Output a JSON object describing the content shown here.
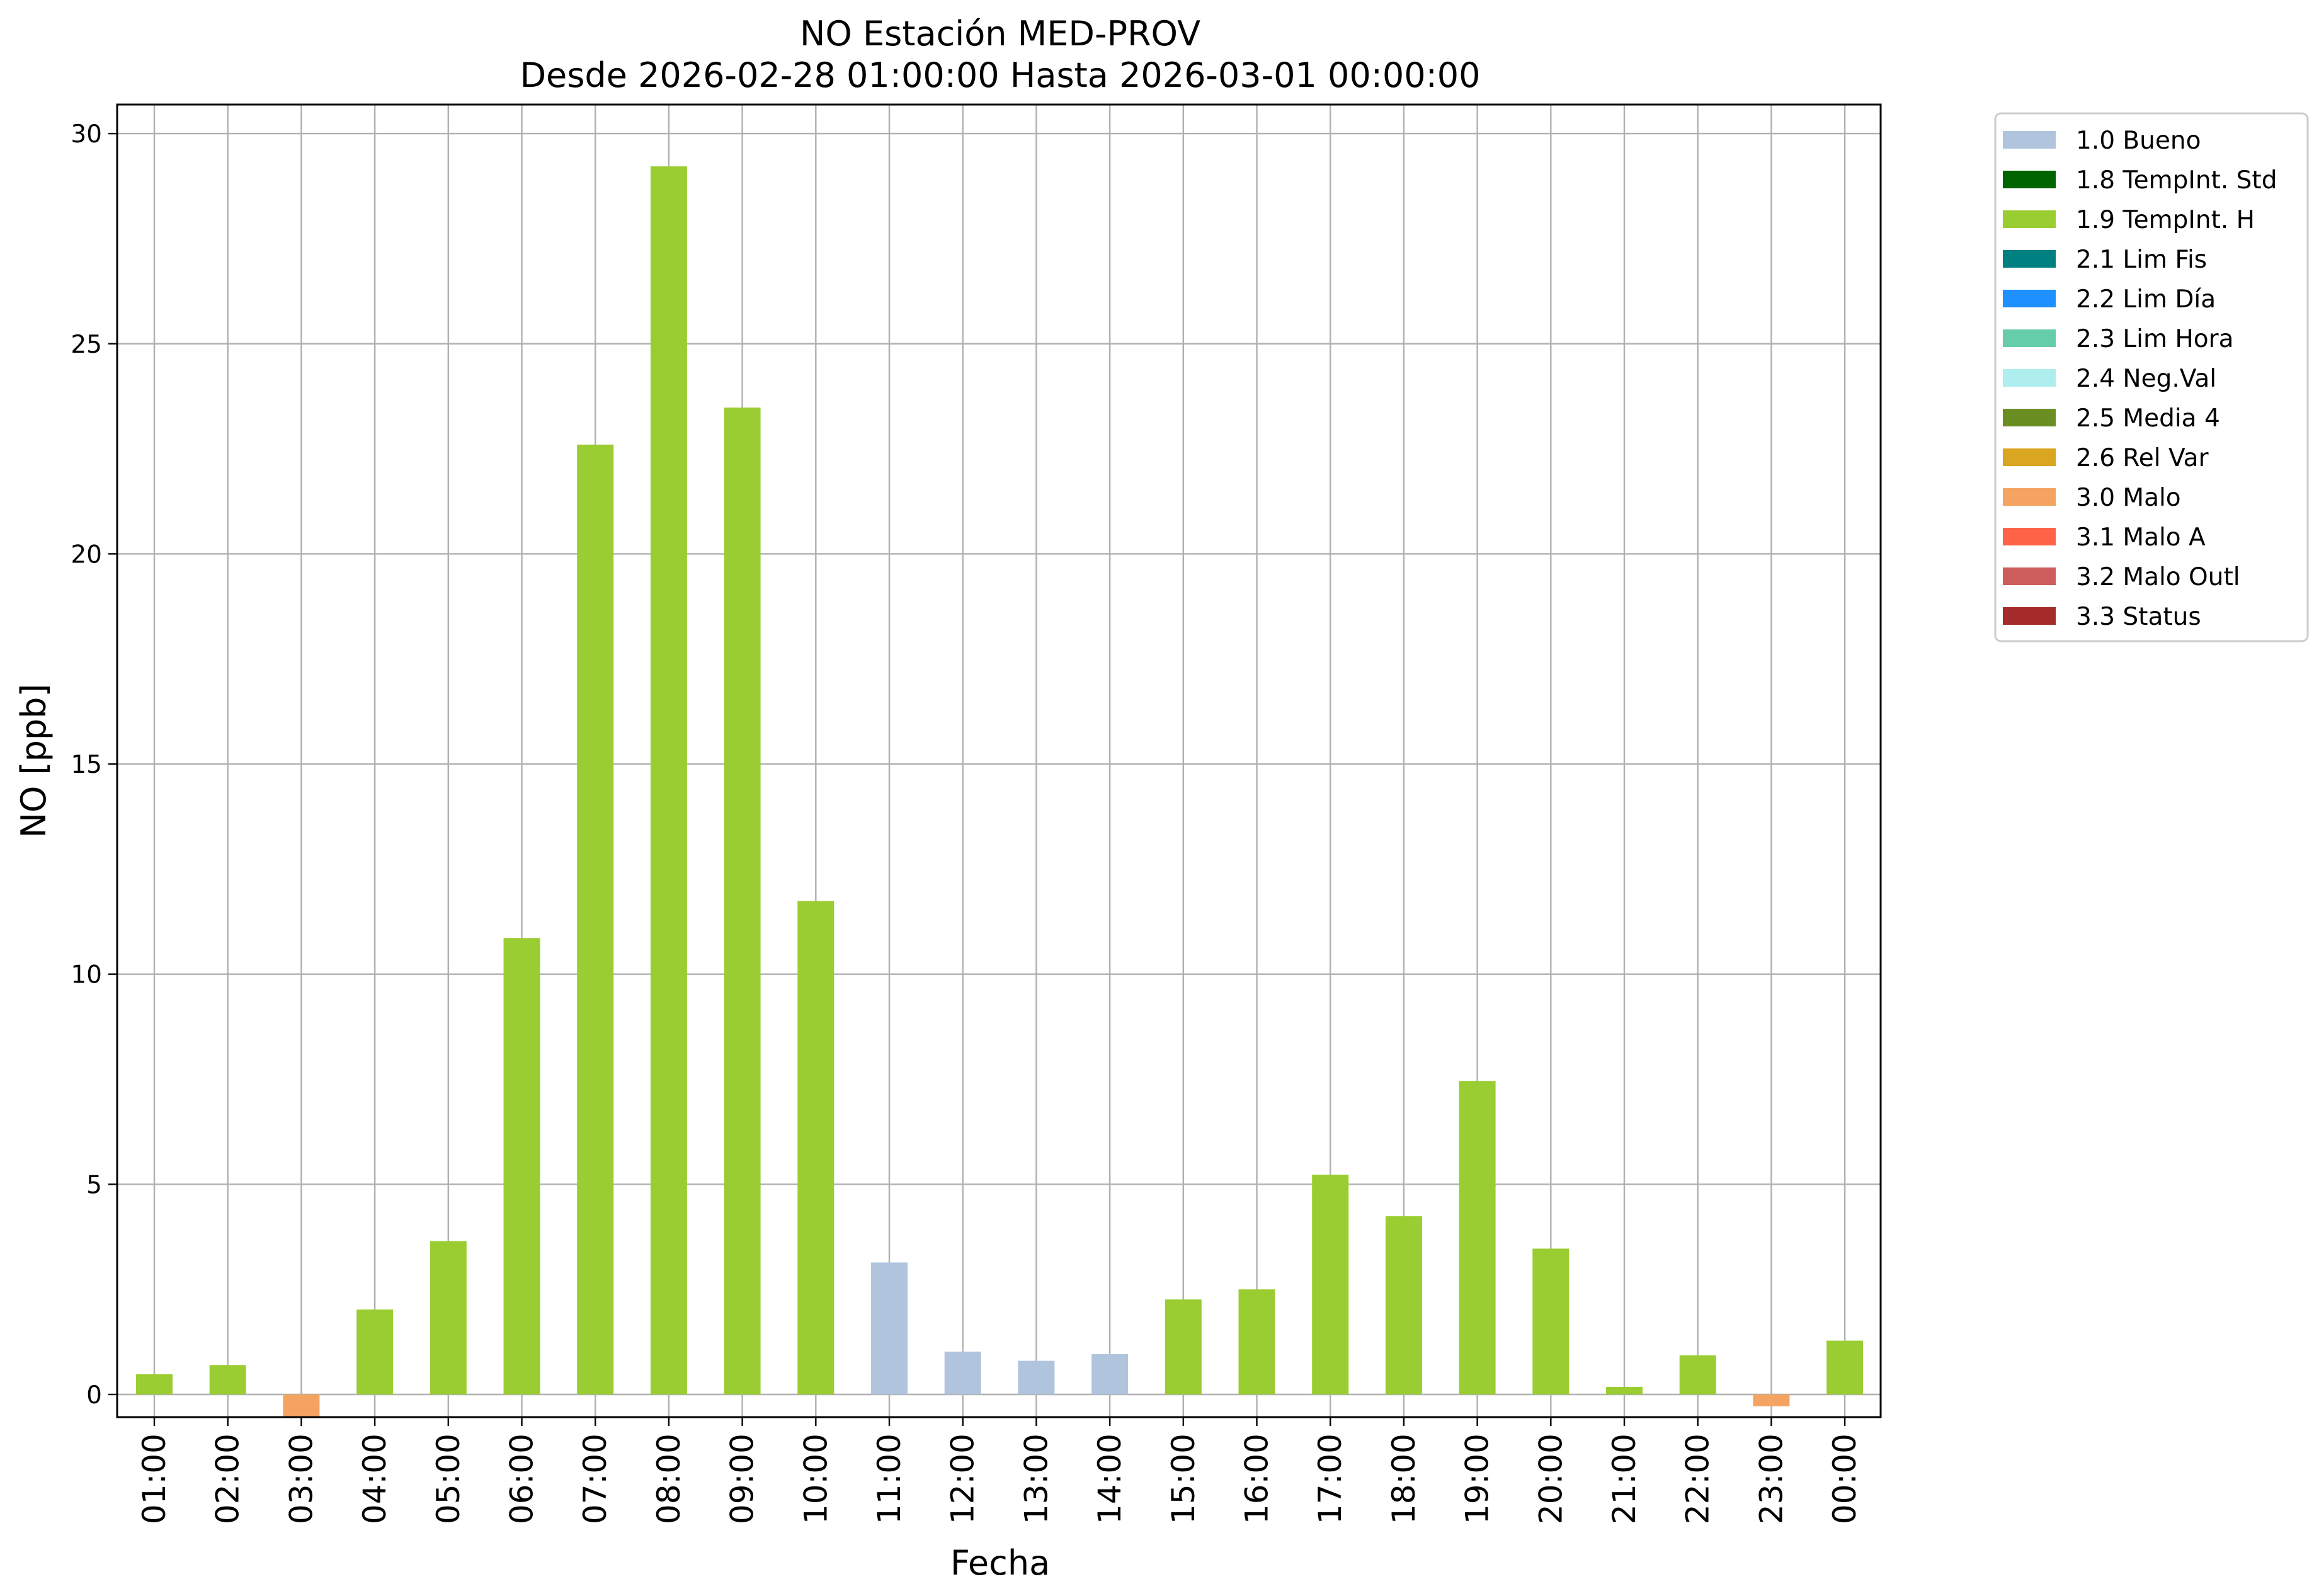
{
  "chart_data": {
    "type": "bar",
    "title": "NO Estación MED-PROV",
    "subtitle": "Desde 2026-02-28 01:00:00 Hasta 2026-03-01 00:00:00",
    "xlabel": "Fecha",
    "ylabel": "NO [ppb]",
    "ylim": [
      -0.55,
      30.6
    ],
    "yticks": [
      0,
      5,
      10,
      15,
      20,
      25,
      30
    ],
    "grid": true,
    "legend_position": "outside-right-top",
    "categories": [
      "01:00",
      "02:00",
      "03:00",
      "04:00",
      "05:00",
      "06:00",
      "07:00",
      "08:00",
      "09:00",
      "10:00",
      "11:00",
      "12:00",
      "13:00",
      "14:00",
      "15:00",
      "16:00",
      "17:00",
      "18:00",
      "19:00",
      "20:00",
      "21:00",
      "22:00",
      "23:00",
      "00:00"
    ],
    "values": [
      0.48,
      0.7,
      -0.55,
      2.02,
      3.65,
      10.86,
      22.6,
      29.22,
      23.48,
      11.74,
      3.14,
      1.02,
      0.8,
      0.96,
      2.26,
      2.5,
      5.23,
      4.24,
      7.46,
      3.47,
      0.18,
      0.93,
      -0.28,
      1.28
    ],
    "flags": [
      "1.9",
      "1.9",
      "3.0",
      "1.9",
      "1.9",
      "1.9",
      "1.9",
      "1.9",
      "1.9",
      "1.9",
      "1.0",
      "1.0",
      "1.0",
      "1.0",
      "1.9",
      "1.9",
      "1.9",
      "1.9",
      "1.9",
      "1.9",
      "1.9",
      "1.9",
      "3.0",
      "1.9"
    ],
    "legend": [
      {
        "key": "1.0",
        "label": "1.0 Bueno",
        "color": "#b0c4de"
      },
      {
        "key": "1.8",
        "label": "1.8 TempInt. Std",
        "color": "#006400"
      },
      {
        "key": "1.9",
        "label": "1.9 TempInt. H",
        "color": "#9acd32"
      },
      {
        "key": "2.1",
        "label": "2.1 Lim Fis",
        "color": "#008080"
      },
      {
        "key": "2.2",
        "label": "2.2 Lim Día",
        "color": "#1e90ff"
      },
      {
        "key": "2.3",
        "label": "2.3 Lim Hora",
        "color": "#66cdaa"
      },
      {
        "key": "2.4",
        "label": "2.4 Neg.Val",
        "color": "#afeeee"
      },
      {
        "key": "2.5",
        "label": "2.5 Media 4",
        "color": "#6b8e23"
      },
      {
        "key": "2.6",
        "label": "2.6 Rel Var",
        "color": "#daa520"
      },
      {
        "key": "3.0",
        "label": "3.0 Malo",
        "color": "#f4a460"
      },
      {
        "key": "3.1",
        "label": "3.1 Malo A",
        "color": "#ff6347"
      },
      {
        "key": "3.2",
        "label": "3.2 Malo Outl",
        "color": "#cd5c5c"
      },
      {
        "key": "3.3",
        "label": "3.3 Status",
        "color": "#a52a2a"
      }
    ]
  }
}
